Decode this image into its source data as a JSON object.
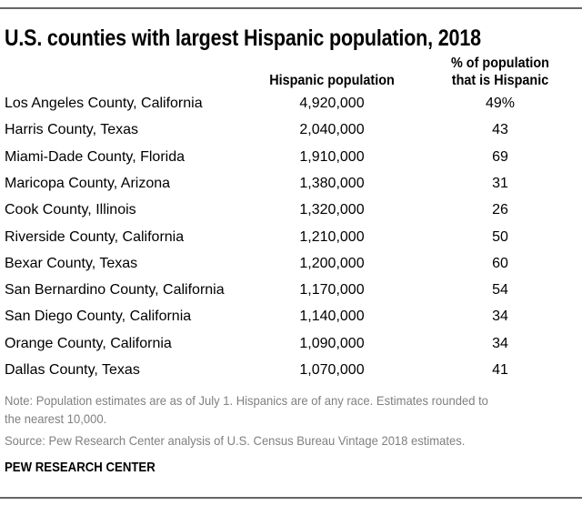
{
  "chart_data": {
    "type": "table",
    "title": "U.S. counties with largest Hispanic population, 2018",
    "columns": [
      "",
      "Hispanic population",
      "% of population that is Hispanic"
    ],
    "column_header_lines": {
      "pop": "Hispanic population",
      "pct_line1": "% of population",
      "pct_line2": "that is Hispanic"
    },
    "rows": [
      {
        "county": "Los Angeles County, California",
        "population": "4,920,000",
        "percent": "49%"
      },
      {
        "county": "Harris County, Texas",
        "population": "2,040,000",
        "percent": "43"
      },
      {
        "county": "Miami-Dade County, Florida",
        "population": "1,910,000",
        "percent": "69"
      },
      {
        "county": "Maricopa County, Arizona",
        "population": "1,380,000",
        "percent": "31"
      },
      {
        "county": "Cook County, Illinois",
        "population": "1,320,000",
        "percent": "26"
      },
      {
        "county": "Riverside County, California",
        "population": "1,210,000",
        "percent": "50"
      },
      {
        "county": "Bexar County, Texas",
        "population": "1,200,000",
        "percent": "60"
      },
      {
        "county": "San Bernardino County, California",
        "population": "1,170,000",
        "percent": "54"
      },
      {
        "county": "San Diego County, California",
        "population": "1,140,000",
        "percent": "34"
      },
      {
        "county": "Orange County, California",
        "population": "1,090,000",
        "percent": "34"
      },
      {
        "county": "Dallas County, Texas",
        "population": "1,070,000",
        "percent": "41"
      }
    ],
    "note_line1": "Note: Population estimates are as of July 1. Hispanics are of any race. Estimates rounded to",
    "note_line2": "the nearest 10,000.",
    "source": "Source: Pew Research Center analysis of U.S. Census Bureau Vintage 2018 estimates.",
    "brand": "PEW RESEARCH CENTER"
  }
}
